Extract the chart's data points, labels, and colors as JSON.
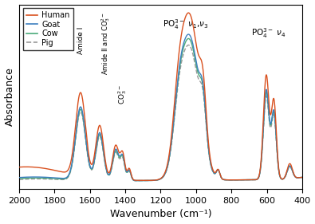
{
  "xlabel": "Wavenumber (cm⁻¹)",
  "ylabel": "Absorbance",
  "xlim": [
    2000,
    400
  ],
  "colors": {
    "Human": "#d9501e",
    "Goat": "#3d7fbf",
    "Cow": "#4aaa7a",
    "Pig": "#999999"
  },
  "lw": 1.0,
  "xticks": [
    2000,
    1800,
    1600,
    1400,
    1200,
    1000,
    800,
    600,
    400
  ]
}
